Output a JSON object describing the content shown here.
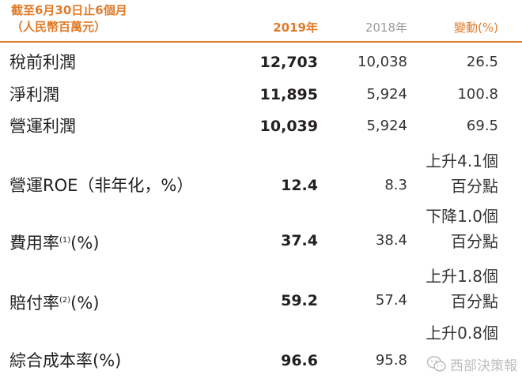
{
  "header": {
    "title_line1": "截至6月30日止6個月",
    "title_line2": "（人民幣百萬元）",
    "col_2019": "2019年",
    "col_2018": "2018年",
    "col_change": "變動(%)"
  },
  "rows": [
    {
      "label": "稅前利潤",
      "v2019": "12,703",
      "v2018": "10,038",
      "change": "26.5"
    },
    {
      "label": "淨利潤",
      "v2019": "11,895",
      "v2018": "5,924",
      "change": "100.8"
    },
    {
      "label": "營運利潤",
      "v2019": "10,039",
      "v2018": "5,924",
      "change": "69.5"
    },
    {
      "label": "營運ROE（非年化，%）",
      "v2019": "12.4",
      "v2018": "8.3",
      "change_line1": "上升4.1個",
      "change_line2": "百分點"
    },
    {
      "label": "費用率",
      "note": "(1)",
      "suffix": "(%)",
      "v2019": "37.4",
      "v2018": "38.4",
      "change_line1": "下降1.0個",
      "change_line2": "百分點"
    },
    {
      "label": "賠付率",
      "note": "(2)",
      "suffix": "(%)",
      "v2019": "59.2",
      "v2018": "57.4",
      "change_line1": "上升1.8個",
      "change_line2": "百分點"
    },
    {
      "label": "綜合成本率(%)",
      "v2019": "96.6",
      "v2018": "95.8",
      "change_line1": "上升0.8個"
    }
  ],
  "watermark": {
    "text": "西部決策報",
    "icon": "wechat-icon"
  }
}
